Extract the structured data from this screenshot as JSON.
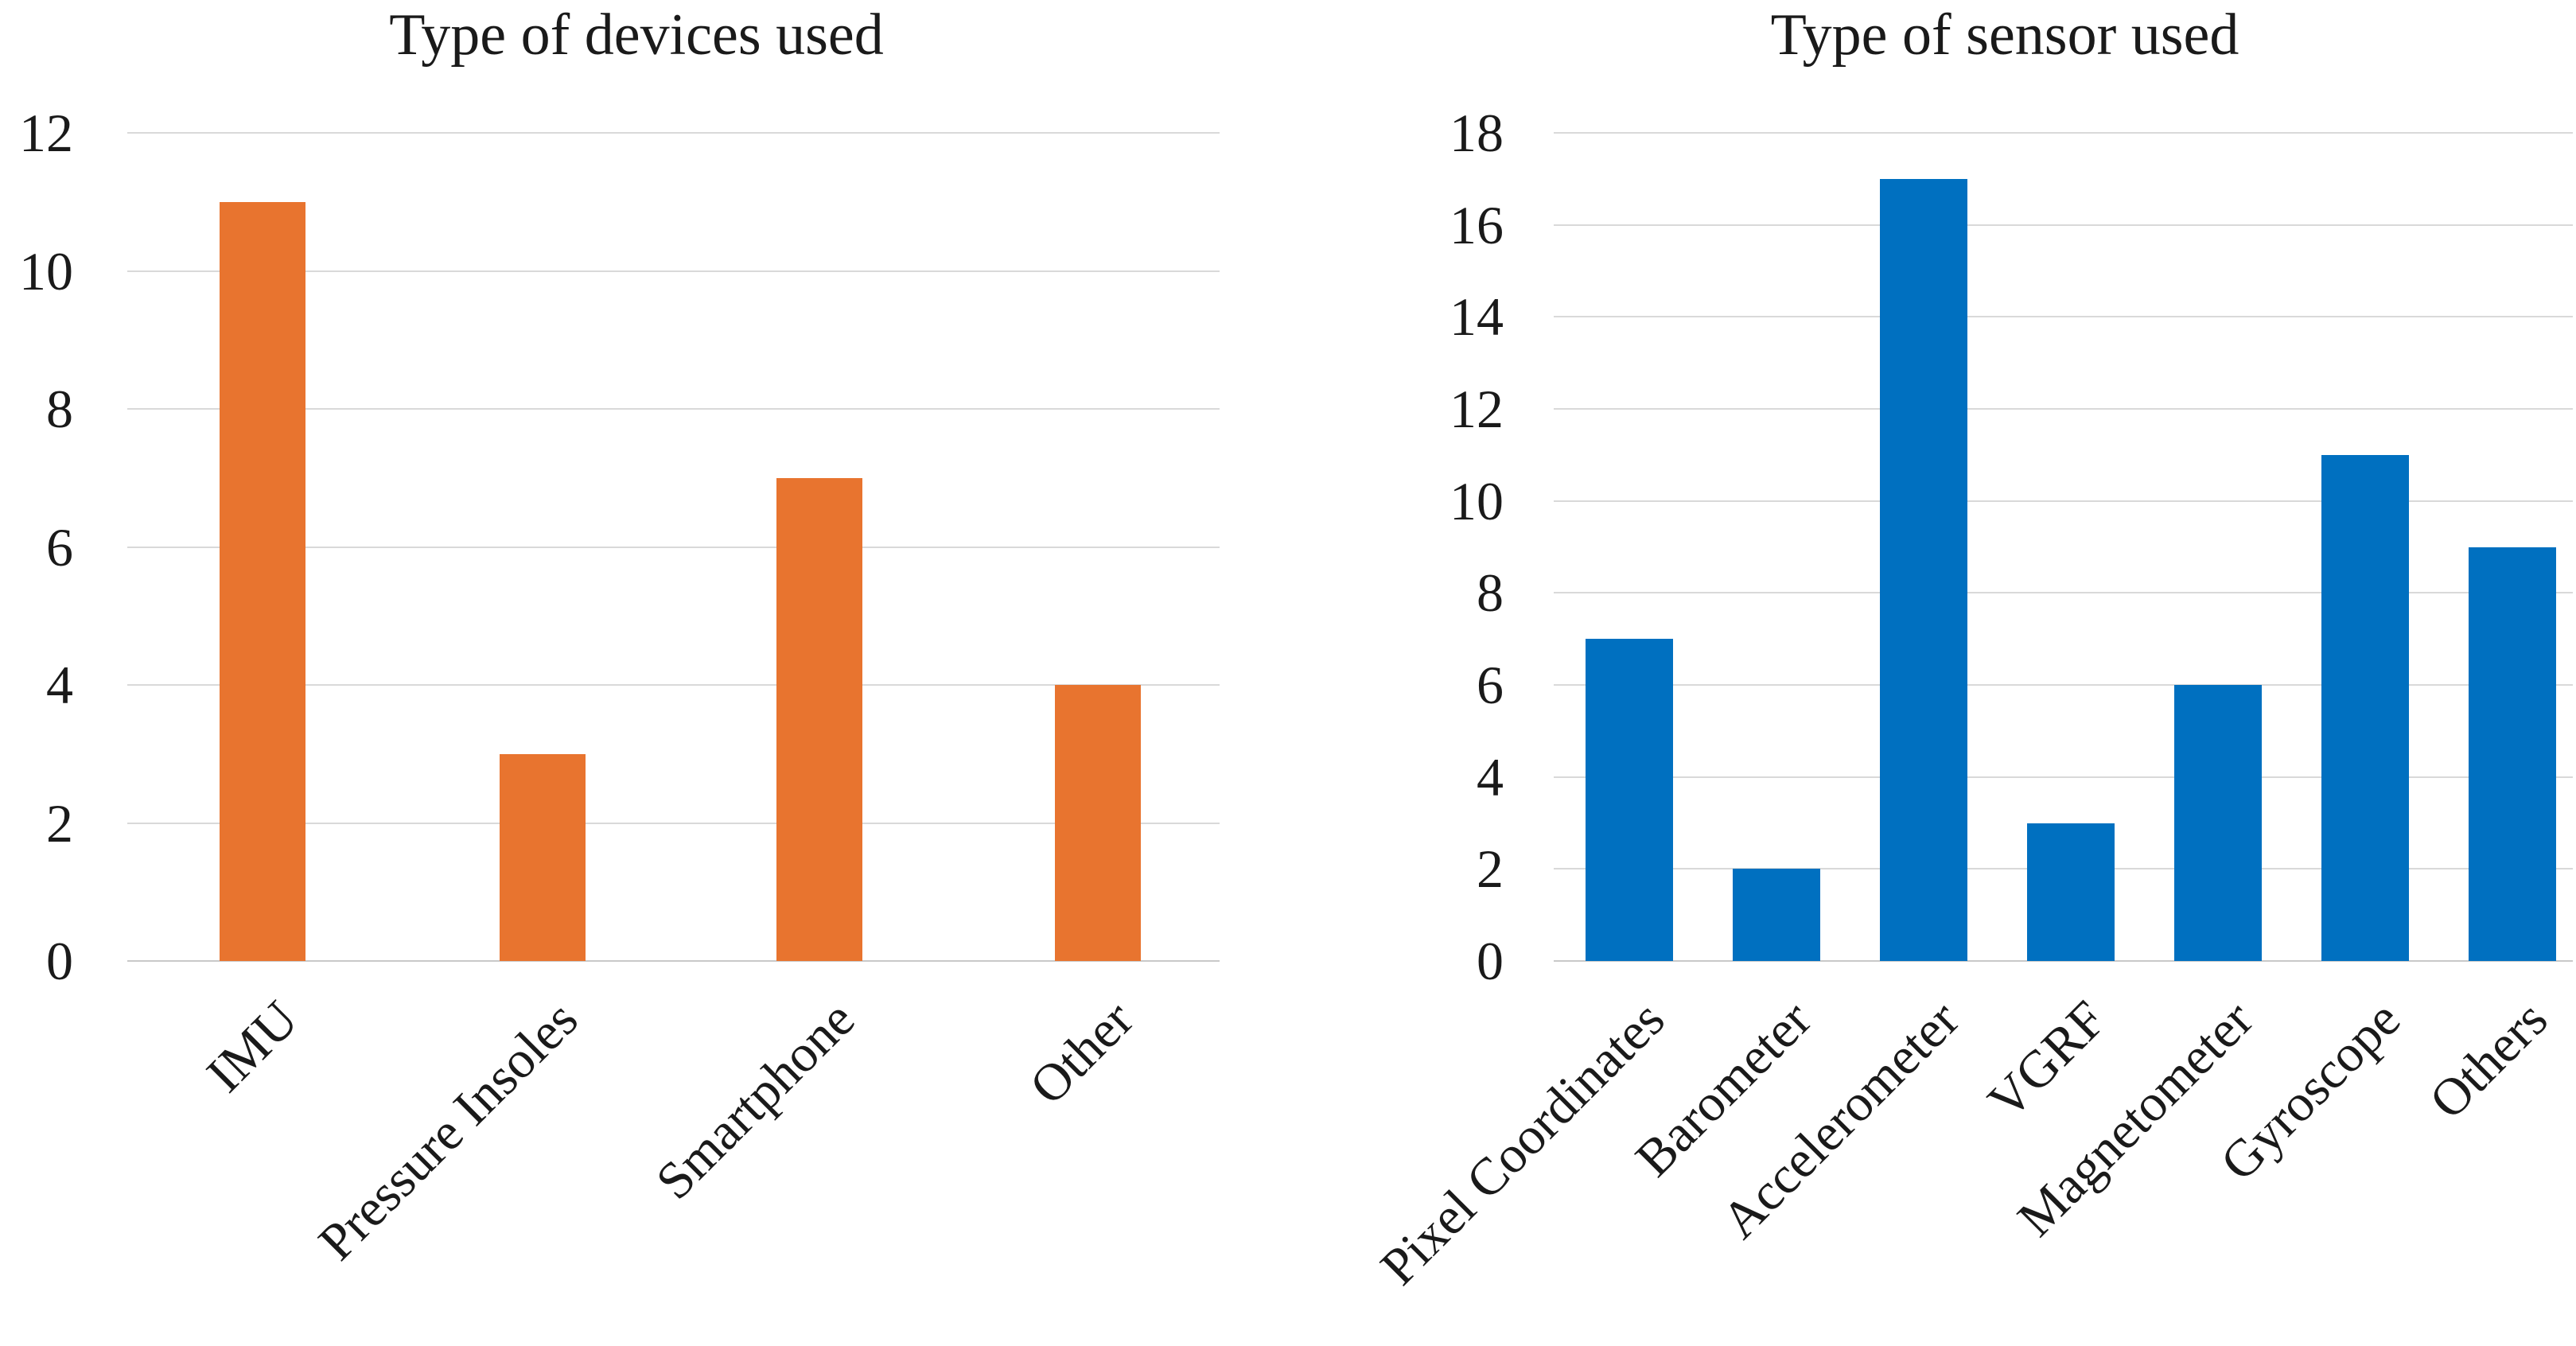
{
  "styles": {
    "background": "#ffffff",
    "grid_color": "#d9d9d9",
    "axis_line_color": "#c9c9c9",
    "text_color": "#1a1a1a",
    "device_bar_color": "#e8742f",
    "sensor_bar_color": "#0070c0"
  },
  "chart_data": [
    {
      "type": "bar",
      "title": "Type of devices used",
      "categories": [
        "IMU",
        "Pressure Insoles",
        "Smartphone",
        "Other"
      ],
      "values": [
        11,
        3,
        7,
        4
      ],
      "bar_color": "#e8742f",
      "xlabel": "",
      "ylabel": "",
      "ylim": [
        0,
        12
      ],
      "yticks": [
        0,
        2,
        4,
        6,
        8,
        10,
        12
      ],
      "grid": "horizontal",
      "legend": "none",
      "tick_label_rotation": 45
    },
    {
      "type": "bar",
      "title": "Type of sensor used",
      "categories": [
        "Pixel Coordinates",
        "Barometer",
        "Accelerometer",
        "VGRF",
        "Magnetometer",
        "Gyroscope",
        "Others"
      ],
      "values": [
        7,
        2,
        17,
        3,
        6,
        11,
        9
      ],
      "bar_color": "#0070c0",
      "xlabel": "",
      "ylabel": "",
      "ylim": [
        0,
        18
      ],
      "yticks": [
        0,
        2,
        4,
        6,
        8,
        10,
        12,
        14,
        16,
        18
      ],
      "grid": "horizontal",
      "legend": "none",
      "tick_label_rotation": 45
    }
  ]
}
